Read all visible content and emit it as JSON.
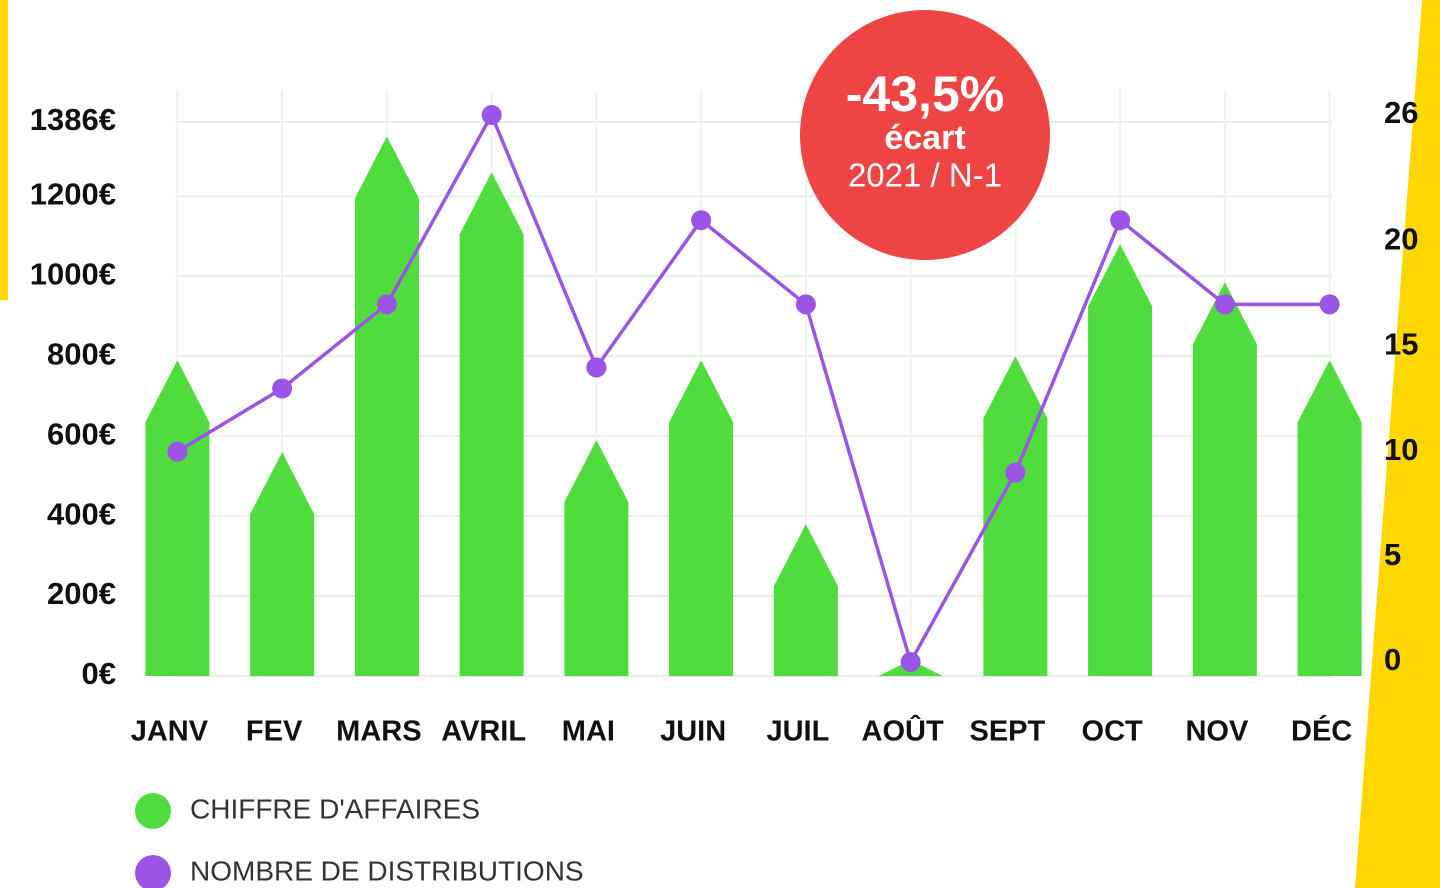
{
  "chart_data": {
    "type": "bar",
    "categories": [
      "JANV",
      "FEV",
      "MARS",
      "AVRIL",
      "MAI",
      "JUIN",
      "JUIL",
      "AOÛT",
      "SEPT",
      "OCT",
      "NOV",
      "DÉC"
    ],
    "series": [
      {
        "name": "CHIFFRE D'AFFAIRES",
        "type": "bar",
        "color": "#4fdc3c",
        "values": [
          790,
          560,
          1350,
          1260,
          590,
          790,
          380,
          40,
          800,
          1080,
          985,
          790
        ]
      },
      {
        "name": "NOMBRE DE DISTRIBUTIONS",
        "type": "line",
        "axis": "y2",
        "color": "#9b55e6",
        "values": [
          10,
          13,
          17,
          26,
          14,
          21,
          17,
          0,
          9,
          21,
          17,
          17
        ]
      }
    ],
    "ylim": [
      0,
      1386
    ],
    "yticks": [
      {
        "value": 0,
        "label": "0€"
      },
      {
        "value": 200,
        "label": "200€"
      },
      {
        "value": 400,
        "label": "400€"
      },
      {
        "value": 600,
        "label": "600€"
      },
      {
        "value": 800,
        "label": "800€"
      },
      {
        "value": 1000,
        "label": "1000€"
      },
      {
        "value": 1200,
        "label": "1200€"
      },
      {
        "value": 1386,
        "label": "1386€"
      }
    ],
    "y2lim": [
      0,
      26
    ],
    "y2ticks": [
      0,
      5,
      10,
      15,
      20,
      26
    ],
    "grid": true,
    "annotations": [
      "-43,5%",
      "écart",
      "2021 / N-1"
    ]
  }
}
